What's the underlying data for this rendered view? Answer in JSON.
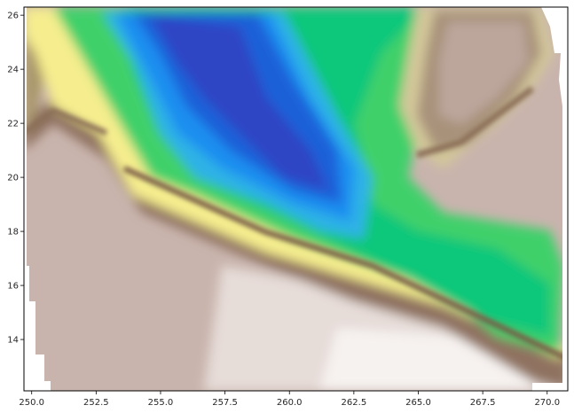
{
  "chart_data": {
    "type": "heatmap",
    "title": "",
    "xlabel": "",
    "ylabel": "",
    "xlim": [
      249.7,
      270.8
    ],
    "ylim": [
      12.1,
      26.3
    ],
    "x_ticks": [
      250.0,
      252.5,
      255.0,
      257.5,
      260.0,
      262.5,
      265.0,
      267.5,
      270.0
    ],
    "x_tick_labels": [
      "250.0",
      "252.5",
      "255.0",
      "257.5",
      "260.0",
      "262.5",
      "265.0",
      "267.5",
      "270.0"
    ],
    "y_ticks": [
      14,
      16,
      18,
      20,
      22,
      24,
      26
    ],
    "y_tick_labels": [
      "14",
      "16",
      "18",
      "20",
      "22",
      "24",
      "26"
    ],
    "colormap": "terrain",
    "grid": false,
    "legend": "none"
  }
}
